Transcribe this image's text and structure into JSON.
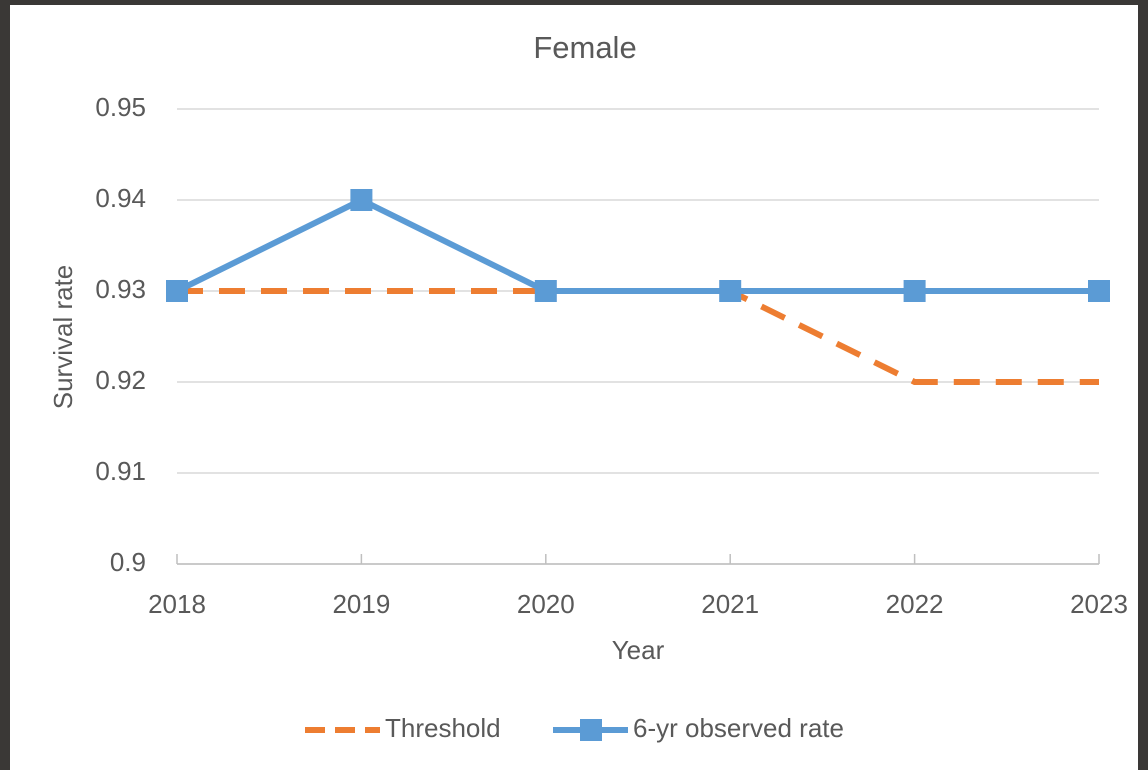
{
  "chart_data": {
    "type": "line",
    "title": "Female",
    "xlabel": "Year",
    "ylabel": "Survival rate",
    "categories": [
      "2018",
      "2019",
      "2020",
      "2021",
      "2022",
      "2023"
    ],
    "series": [
      {
        "name": "Threshold",
        "color": "#ED7D31",
        "dashed": true,
        "marker": false,
        "values": [
          0.93,
          0.93,
          0.93,
          0.93,
          0.92,
          0.92
        ]
      },
      {
        "name": "6-yr observed rate",
        "color": "#5B9BD5",
        "dashed": false,
        "marker": true,
        "values": [
          0.93,
          0.94,
          0.93,
          0.93,
          0.93,
          0.93
        ]
      }
    ],
    "ylim": [
      0.9,
      0.95
    ],
    "yticks": [
      0.9,
      0.91,
      0.92,
      0.93,
      0.94,
      0.95
    ],
    "grid": true,
    "legend": "bottom"
  }
}
